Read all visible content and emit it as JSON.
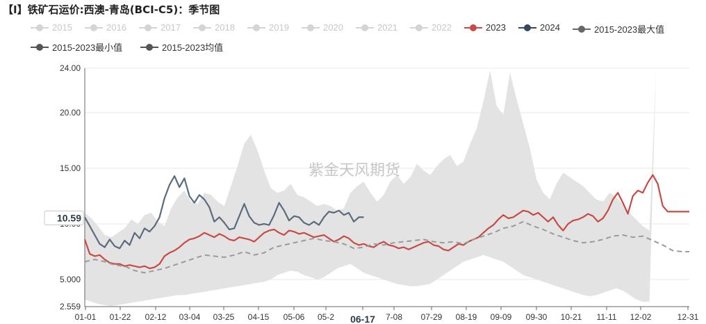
{
  "title": "【I】铁矿石运价:西澳-青岛(BCI-C5)：季节图",
  "watermark": "紫金天风期货",
  "legend": {
    "row1": [
      {
        "label": "2015",
        "state": "off"
      },
      {
        "label": "2016",
        "state": "off"
      },
      {
        "label": "2017",
        "state": "off"
      },
      {
        "label": "2018",
        "state": "off"
      },
      {
        "label": "2019",
        "state": "off"
      },
      {
        "label": "2020",
        "state": "off"
      },
      {
        "label": "2021",
        "state": "off"
      },
      {
        "label": "2022",
        "state": "off"
      },
      {
        "label": "2023",
        "state": "on",
        "color": "#c94a44"
      },
      {
        "label": "2024",
        "state": "on",
        "color": "#34495e"
      },
      {
        "label": "2015-2023最大值",
        "state": "on",
        "color": "#666666"
      }
    ],
    "row2": [
      {
        "label": "2015-2023最小值",
        "state": "on",
        "color": "#555555"
      },
      {
        "label": "2015-2023均值",
        "state": "on",
        "color": "#555555"
      }
    ]
  },
  "chart_data": {
    "type": "line",
    "y_ticks": [
      "24.00",
      "20.00",
      "15.00",
      "10.00",
      "5.000",
      "2.559"
    ],
    "x_ticks": [
      "01-01",
      "01-22",
      "02-12",
      "03-04",
      "03-25",
      "04-15",
      "05-06",
      "05-2",
      "06-17",
      "7-08",
      "07-29",
      "08-19",
      "09-09",
      "09-30",
      "10-21",
      "11-11",
      "12-02",
      "12-31"
    ],
    "x_highlight": "06-17",
    "y_highlight": "10.59",
    "ylim": [
      2.559,
      24.0
    ],
    "x_range_days": [
      0,
      364
    ],
    "band": {
      "name": "2015-2023 range",
      "color": "#e3e3e3",
      "days": [
        0,
        4,
        8,
        12,
        16,
        20,
        24,
        28,
        32,
        36,
        40,
        44,
        48,
        52,
        56,
        60,
        64,
        68,
        72,
        76,
        80,
        84,
        88,
        92,
        96,
        100,
        104,
        108,
        112,
        116,
        120,
        124,
        128,
        132,
        136,
        140,
        144,
        148,
        152,
        156,
        160,
        164,
        168,
        172,
        176,
        180,
        184,
        188,
        192,
        196,
        200,
        204,
        208,
        212,
        216,
        220,
        224,
        228,
        232,
        236,
        240,
        244,
        248,
        252,
        256,
        260,
        264,
        268,
        272,
        276,
        280,
        284,
        288,
        292,
        296,
        300,
        304,
        308,
        312,
        316,
        320,
        324,
        328,
        332,
        336,
        340,
        344,
        348,
        352,
        356,
        360,
        364
      ],
      "max": [
        11.0,
        10.5,
        9.8,
        9.0,
        8.8,
        9.2,
        9.6,
        10.4,
        10.0,
        10.8,
        11.0,
        10.2,
        9.8,
        11.4,
        12.4,
        13.0,
        12.0,
        11.8,
        12.8,
        12.6,
        12.0,
        11.6,
        13.4,
        15.2,
        17.2,
        18.0,
        16.6,
        14.8,
        13.2,
        12.8,
        13.0,
        13.6,
        12.6,
        12.4,
        12.0,
        11.6,
        11.8,
        11.6,
        11.2,
        11.4,
        12.8,
        13.4,
        13.8,
        12.8,
        12.0,
        12.6,
        13.8,
        14.4,
        13.6,
        14.2,
        15.4,
        14.8,
        14.4,
        15.2,
        15.8,
        16.2,
        15.2,
        15.6,
        17.2,
        18.6,
        21.0,
        23.8,
        20.6,
        19.8,
        23.6,
        21.2,
        19.0,
        16.8,
        14.0,
        12.8,
        12.2,
        13.6,
        14.6,
        14.2,
        13.8,
        13.4,
        12.8,
        12.2,
        12.0,
        12.8,
        12.4,
        11.8,
        11.0,
        10.4,
        9.8,
        9.4
      ],
      "min": [
        3.2,
        3.0,
        2.8,
        2.7,
        2.6,
        2.7,
        2.8,
        2.9,
        3.0,
        3.1,
        3.2,
        3.3,
        3.4,
        3.5,
        3.6,
        3.6,
        3.7,
        3.8,
        3.9,
        4.0,
        4.1,
        4.2,
        4.3,
        4.4,
        4.5,
        4.6,
        4.7,
        4.8,
        5.0,
        5.4,
        5.6,
        5.8,
        5.7,
        5.4,
        5.2,
        5.0,
        5.2,
        5.6,
        6.0,
        6.2,
        6.4,
        6.0,
        5.6,
        5.4,
        5.2,
        5.0,
        4.8,
        4.6,
        4.5,
        4.4,
        4.4,
        4.5,
        4.6,
        5.0,
        5.4,
        5.8,
        6.2,
        6.6,
        6.8,
        7.0,
        7.2,
        7.0,
        6.8,
        6.6,
        6.2,
        5.8,
        5.4,
        5.2,
        5.0,
        4.8,
        4.6,
        4.4,
        4.2,
        4.0,
        3.8,
        3.6,
        3.5,
        3.6,
        3.8,
        4.0,
        4.2,
        4.0,
        3.6,
        3.2,
        3.0,
        3.0
      ]
    },
    "series": [
      {
        "name": "2023",
        "color": "#c94a44",
        "days": [
          0,
          3,
          6,
          9,
          12,
          15,
          18,
          21,
          24,
          27,
          30,
          33,
          36,
          39,
          42,
          45,
          48,
          51,
          54,
          57,
          60,
          63,
          66,
          69,
          72,
          75,
          78,
          81,
          84,
          87,
          90,
          93,
          96,
          99,
          102,
          105,
          108,
          111,
          114,
          117,
          120,
          123,
          126,
          129,
          132,
          135,
          138,
          141,
          144,
          147,
          150,
          153,
          156,
          159,
          162,
          165,
          168,
          171,
          174,
          177,
          180,
          183,
          186,
          189,
          192,
          195,
          198,
          201,
          204,
          207,
          210,
          213,
          216,
          219,
          222,
          225,
          228,
          231,
          234,
          237,
          240,
          243,
          246,
          249,
          252,
          255,
          258,
          261,
          264,
          267,
          270,
          273,
          276,
          279,
          282,
          285,
          288,
          291,
          294,
          297,
          300,
          303,
          306,
          309,
          312,
          315,
          318,
          321,
          324,
          327,
          330,
          333,
          336,
          339,
          342,
          345,
          348,
          351,
          354,
          357,
          360,
          364
        ],
        "values": [
          8.6,
          7.3,
          7.1,
          7.2,
          6.8,
          6.5,
          6.4,
          6.4,
          6.2,
          6.3,
          6.2,
          6.1,
          6.2,
          6.0,
          6.1,
          6.4,
          7.1,
          7.4,
          7.6,
          7.9,
          8.3,
          8.6,
          8.7,
          8.9,
          9.2,
          9.0,
          8.8,
          9.1,
          8.9,
          8.6,
          8.5,
          8.8,
          8.7,
          8.6,
          8.4,
          8.8,
          9.2,
          9.4,
          9.5,
          9.2,
          9.0,
          9.4,
          9.3,
          9.1,
          9.2,
          9.0,
          8.8,
          8.9,
          9.0,
          8.7,
          8.4,
          8.6,
          8.9,
          8.7,
          8.3,
          8.1,
          8.2,
          8.0,
          7.9,
          8.2,
          8.4,
          8.1,
          8.0,
          7.8,
          7.9,
          7.7,
          7.9,
          8.1,
          8.3,
          8.4,
          8.1,
          8.0,
          7.7,
          7.6,
          7.9,
          8.2,
          8.1,
          8.4,
          8.6,
          8.8,
          9.2,
          9.6,
          9.9,
          10.4,
          10.8,
          10.5,
          10.6,
          10.9,
          11.2,
          11.1,
          10.8,
          11.0,
          10.6,
          10.2,
          10.6,
          9.9,
          9.4,
          10.0,
          10.3,
          10.4,
          10.6,
          10.9,
          10.7,
          10.2,
          10.5,
          11.2,
          12.2,
          12.8,
          11.9,
          10.9,
          12.5,
          13.0,
          12.8,
          13.7,
          14.4,
          13.6,
          11.6,
          11.1,
          11.1,
          11.1,
          11.1,
          11.1
        ]
      },
      {
        "name": "2024",
        "color": "#5a6b7d",
        "days": [
          0,
          3,
          6,
          9,
          12,
          15,
          18,
          21,
          24,
          27,
          30,
          33,
          36,
          39,
          42,
          45,
          48,
          51,
          54,
          57,
          60,
          63,
          66,
          69,
          72,
          75,
          78,
          81,
          84,
          87,
          90,
          93,
          96,
          99,
          102,
          105,
          108,
          111,
          114,
          117,
          120,
          123,
          126,
          129,
          132,
          135,
          138,
          141,
          144,
          147,
          150,
          153,
          156,
          159,
          162,
          165,
          168
        ],
        "values": [
          10.6,
          9.8,
          9.0,
          8.2,
          7.9,
          8.6,
          8.0,
          7.8,
          8.5,
          8.1,
          9.2,
          8.7,
          9.6,
          9.3,
          9.8,
          10.6,
          12.3,
          13.5,
          14.3,
          13.3,
          14.1,
          12.5,
          11.9,
          12.6,
          12.2,
          11.5,
          10.2,
          10.6,
          10.1,
          9.5,
          9.6,
          10.7,
          11.8,
          10.7,
          10.1,
          9.9,
          10.0,
          9.9,
          10.8,
          11.9,
          11.2,
          10.3,
          10.7,
          10.6,
          10.1,
          9.9,
          10.2,
          9.9,
          10.6,
          11.1,
          11.0,
          11.2,
          10.8,
          11.0,
          10.2,
          10.6,
          10.6
        ]
      },
      {
        "name": "2015-2023均值",
        "color": "#9a9a9a",
        "dashed": true,
        "days": [
          0,
          6,
          12,
          18,
          24,
          30,
          36,
          42,
          48,
          54,
          60,
          66,
          72,
          78,
          84,
          90,
          96,
          102,
          108,
          114,
          120,
          126,
          132,
          138,
          144,
          150,
          156,
          162,
          168,
          174,
          180,
          186,
          192,
          198,
          204,
          210,
          216,
          222,
          228,
          234,
          240,
          246,
          252,
          258,
          264,
          270,
          276,
          282,
          288,
          294,
          300,
          306,
          312,
          318,
          324,
          330,
          336,
          342,
          348,
          354,
          360,
          364
        ],
        "values": [
          6.6,
          6.8,
          6.6,
          6.3,
          6.2,
          5.8,
          5.6,
          5.8,
          6.0,
          6.3,
          6.6,
          6.9,
          7.2,
          7.1,
          7.0,
          7.2,
          7.5,
          7.2,
          7.4,
          7.9,
          8.1,
          8.3,
          8.5,
          8.7,
          8.5,
          8.4,
          8.2,
          7.8,
          7.9,
          8.2,
          8.1,
          8.3,
          8.4,
          8.5,
          8.6,
          8.4,
          8.3,
          8.4,
          8.2,
          8.6,
          8.9,
          9.2,
          9.6,
          9.8,
          10.2,
          9.8,
          9.5,
          9.1,
          8.8,
          8.5,
          8.3,
          8.4,
          8.6,
          8.9,
          9.0,
          8.8,
          8.9,
          8.5,
          8.1,
          7.6,
          7.5,
          7.5
        ]
      }
    ]
  }
}
